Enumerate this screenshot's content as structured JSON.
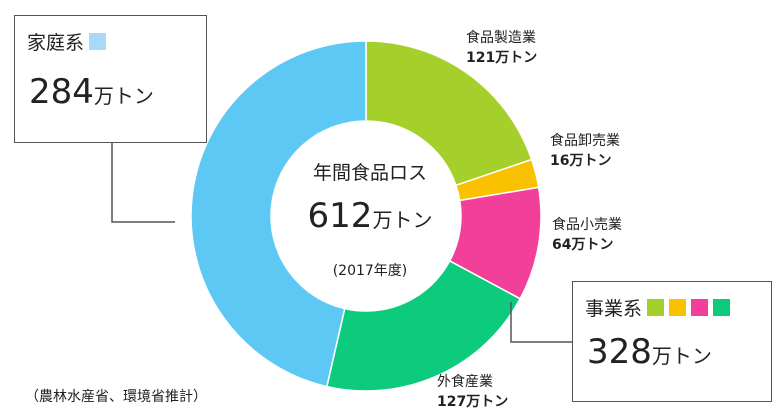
{
  "chart_data": {
    "type": "pie",
    "center": {
      "title": "年間食品ロス",
      "value": "612",
      "unit": "万トン",
      "year": "(2017年度)"
    },
    "categories": [
      "家庭系",
      "食品製造業",
      "食品卸売業",
      "食品小売業",
      "外食産業"
    ],
    "values": [
      284,
      121,
      16,
      64,
      127
    ],
    "colors": [
      "#5ec8f5",
      "#a5cf2a",
      "#f9c100",
      "#f2409a",
      "#0ccb7d"
    ],
    "labels": [
      {
        "name": "食品製造業",
        "value": "121万トン"
      },
      {
        "name": "食品卸売業",
        "value": "16万トン"
      },
      {
        "name": "食品小売業",
        "value": "64万トン"
      },
      {
        "name": "外食産業",
        "value": "127万トン"
      }
    ],
    "groups": {
      "home": {
        "title": "家庭系",
        "value": "284",
        "unit": "万トン",
        "colors": [
          "#a9d8f8"
        ]
      },
      "business": {
        "title": "事業系",
        "value": "328",
        "unit": "万トン",
        "colors": [
          "#a5cf2a",
          "#f9c100",
          "#f2409a",
          "#0ccb7d"
        ]
      }
    },
    "source": "（農林水産省、環境省推計）"
  }
}
